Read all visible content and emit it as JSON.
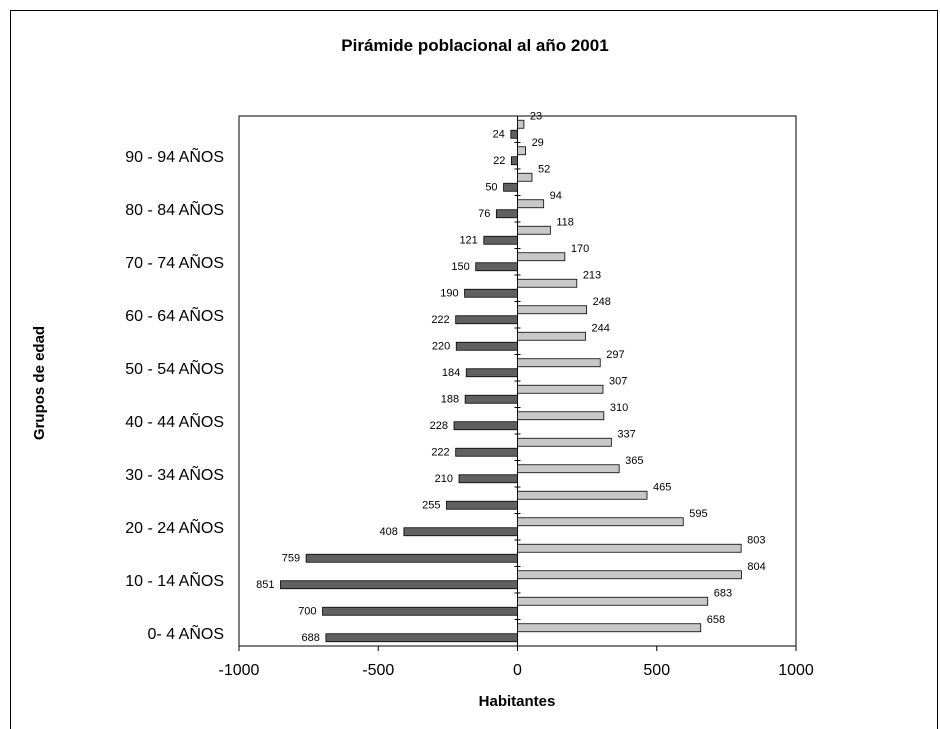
{
  "chart_data": {
    "type": "bar",
    "orientation": "horizontal",
    "title": "Pirámide poblacional al año 2001",
    "xlabel": "Habitantes",
    "ylabel": "Grupos de edad",
    "xlim": [
      -1000,
      1000
    ],
    "xticks": [
      "-1000",
      "-500",
      "0",
      "500",
      "1000"
    ],
    "category_labels_shown": [
      "0- 4 AÑOS",
      "10 - 14 AÑOS",
      "20 - 24 AÑOS",
      "30 - 34 AÑOS",
      "40 - 44 AÑOS",
      "50 - 54 AÑOS",
      "60 - 64 AÑOS",
      "70 - 74 AÑOS",
      "80 - 84 AÑOS",
      "90 - 94 AÑOS"
    ],
    "groups_count": 20,
    "series": [
      {
        "color": "#606060",
        "values": [
          -688,
          -700,
          -851,
          -759,
          -408,
          -255,
          -210,
          -222,
          -228,
          -188,
          -184,
          -220,
          -222,
          -190,
          -150,
          -121,
          -76,
          -50,
          -22,
          -24
        ],
        "labels": [
          "688",
          "700",
          "851",
          "759",
          "408",
          "255",
          "210",
          "222",
          "228",
          "188",
          "184",
          "220",
          "222",
          "190",
          "150",
          "121",
          "76",
          "50",
          "22",
          "24"
        ]
      },
      {
        "color": "#c8c8c8",
        "values": [
          658,
          683,
          804,
          803,
          595,
          465,
          365,
          337,
          310,
          307,
          297,
          244,
          248,
          213,
          170,
          118,
          94,
          52,
          29,
          23
        ],
        "labels": [
          "658",
          "683",
          "804",
          "803",
          "595",
          "465",
          "365",
          "337",
          "310",
          "307",
          "297",
          "244",
          "248",
          "213",
          "170",
          "118",
          "94",
          "52",
          "29",
          "23"
        ]
      }
    ],
    "grid": false,
    "legend": "none"
  }
}
